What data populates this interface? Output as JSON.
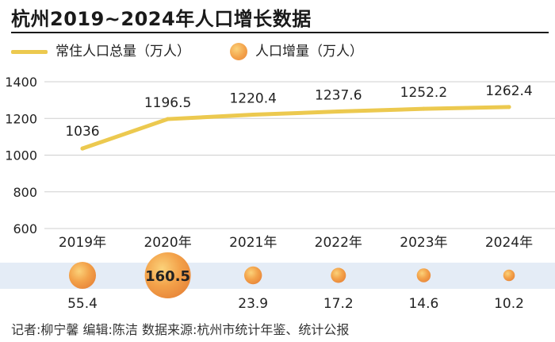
{
  "title": "杭州2019~2024年人口增长数据",
  "legend": {
    "line_label": "常住人口总量（万人）",
    "dot_label": "人口增量（万人）"
  },
  "credits": "记者:柳宁馨   编辑:陈洁   数据来源:杭州市统计年鉴、统计公报",
  "colors": {
    "line": "#ecc94f",
    "band": "#e4ecf6",
    "dot_light": "#fbd27a",
    "dot_dark": "#e8873a",
    "grid": "#cfcfcf"
  },
  "chart_data": {
    "type": "line",
    "categories": [
      "2019年",
      "2020年",
      "2021年",
      "2022年",
      "2023年",
      "2024年"
    ],
    "series": [
      {
        "name": "常住人口总量（万人）",
        "values": [
          1036,
          1196.5,
          1220.4,
          1237.6,
          1252.2,
          1262.4
        ]
      },
      {
        "name": "人口增量（万人）",
        "values": [
          55.4,
          160.5,
          23.9,
          17.2,
          14.6,
          10.2
        ]
      }
    ],
    "y_ticks": [
      "1400",
      "1200",
      "1000",
      "800",
      "600"
    ],
    "ylim": [
      600,
      1400
    ],
    "grid": true
  }
}
